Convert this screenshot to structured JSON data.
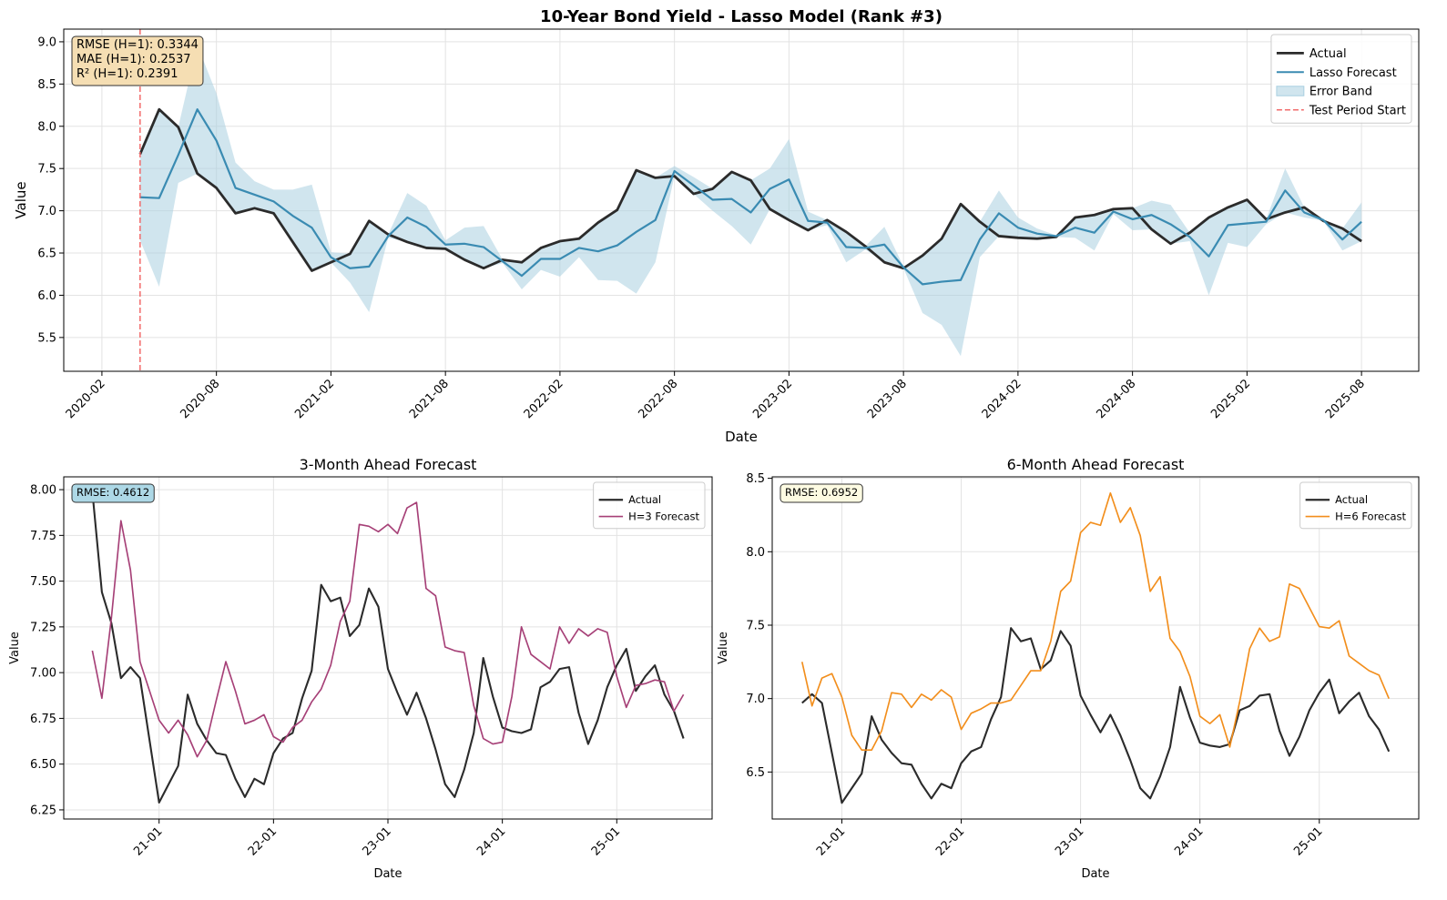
{
  "chart_data": [
    {
      "type": "line",
      "title": "10-Year Bond Yield - Lasso Model (Rank #3)",
      "x_label": "Date",
      "y_label": "Value",
      "x": [
        "2020-04",
        "2020-05",
        "2020-06",
        "2020-07",
        "2020-08",
        "2020-09",
        "2020-10",
        "2020-11",
        "2020-12",
        "2021-01",
        "2021-02",
        "2021-03",
        "2021-04",
        "2021-05",
        "2021-06",
        "2021-07",
        "2021-08",
        "2021-09",
        "2021-10",
        "2021-11",
        "2021-12",
        "2022-01",
        "2022-02",
        "2022-03",
        "2022-04",
        "2022-05",
        "2022-06",
        "2022-07",
        "2022-08",
        "2022-09",
        "2022-10",
        "2022-11",
        "2022-12",
        "2023-01",
        "2023-02",
        "2023-03",
        "2023-04",
        "2023-05",
        "2023-06",
        "2023-07",
        "2023-08",
        "2023-09",
        "2023-10",
        "2023-11",
        "2023-12",
        "2024-01",
        "2024-02",
        "2024-03",
        "2024-04",
        "2024-05",
        "2024-06",
        "2024-07",
        "2024-08",
        "2024-09",
        "2024-10",
        "2024-11",
        "2024-12",
        "2025-01",
        "2025-02",
        "2025-03",
        "2025-04",
        "2025-05",
        "2025-06",
        "2025-07",
        "2025-08"
      ],
      "series": [
        {
          "name": "Actual",
          "color": "#2b2b2b",
          "values": [
            7.67,
            8.2,
            7.99,
            7.44,
            7.27,
            6.97,
            7.03,
            6.97,
            6.63,
            6.29,
            6.39,
            6.49,
            6.88,
            6.72,
            6.63,
            6.56,
            6.55,
            6.42,
            6.32,
            6.42,
            6.39,
            6.56,
            6.64,
            6.67,
            6.86,
            7.01,
            7.48,
            7.39,
            7.41,
            7.2,
            7.26,
            7.46,
            7.36,
            7.02,
            6.89,
            6.77,
            6.89,
            6.75,
            6.58,
            6.39,
            6.32,
            6.47,
            6.67,
            7.08,
            6.87,
            6.7,
            6.68,
            6.67,
            6.69,
            6.92,
            6.95,
            7.02,
            7.03,
            6.78,
            6.61,
            6.74,
            6.92,
            7.04,
            7.13,
            6.9,
            6.98,
            7.04,
            6.88,
            6.79,
            6.64
          ]
        },
        {
          "name": "Lasso Forecast",
          "color": "#3a8bb2",
          "values": [
            7.16,
            7.15,
            7.66,
            8.2,
            7.83,
            7.27,
            7.19,
            7.11,
            6.94,
            6.8,
            6.45,
            6.32,
            6.34,
            6.7,
            6.92,
            6.81,
            6.6,
            6.61,
            6.57,
            6.4,
            6.23,
            6.43,
            6.43,
            6.56,
            6.52,
            6.59,
            6.75,
            6.89,
            7.47,
            7.3,
            7.13,
            7.14,
            6.98,
            7.26,
            7.37,
            6.88,
            6.86,
            6.57,
            6.56,
            6.6,
            6.33,
            6.13,
            6.16,
            6.18,
            6.66,
            6.97,
            6.8,
            6.73,
            6.7,
            6.8,
            6.74,
            6.99,
            6.9,
            6.95,
            6.84,
            6.69,
            6.46,
            6.83,
            6.85,
            6.87,
            7.24,
            6.98,
            6.89,
            6.66,
            6.87
          ],
          "errors": [
            0.51,
            1.05,
            0.33,
            0.76,
            0.56,
            0.3,
            0.16,
            0.14,
            0.31,
            0.51,
            0.06,
            0.17,
            0.54,
            0.02,
            0.29,
            0.25,
            0.05,
            0.19,
            0.25,
            0.02,
            0.16,
            0.13,
            0.21,
            0.11,
            0.34,
            0.42,
            0.73,
            0.5,
            0.06,
            0.1,
            0.13,
            0.32,
            0.38,
            0.24,
            0.48,
            0.11,
            0.03,
            0.18,
            0.02,
            0.21,
            0.01,
            0.34,
            0.51,
            0.9,
            0.21,
            0.27,
            0.12,
            0.06,
            0.01,
            0.12,
            0.21,
            0.03,
            0.13,
            0.17,
            0.23,
            0.05,
            0.46,
            0.21,
            0.28,
            0.03,
            0.26,
            0.06,
            0.01,
            0.13,
            0.23
          ]
        }
      ],
      "band": {
        "name": "Error Band",
        "color": "#a9cfe0"
      },
      "vline": {
        "name": "Test Period Start",
        "x": "2020-04",
        "color": "#f26b6b"
      },
      "annotation": [
        "RMSE (H=1): 0.3344",
        "MAE (H=1): 0.2537",
        "R² (H=1): 0.2391"
      ],
      "annotation_color": "#f5deb3",
      "xlim": [
        "2019-12",
        "2025-11"
      ],
      "xticks": [
        "2020-02",
        "2020-08",
        "2021-02",
        "2021-08",
        "2022-02",
        "2022-08",
        "2023-02",
        "2023-08",
        "2024-02",
        "2024-08",
        "2025-02",
        "2025-08"
      ],
      "ylim": [
        5.1,
        9.15
      ],
      "yticks": [
        5.5,
        6.0,
        6.5,
        7.0,
        7.5,
        8.0,
        8.5,
        9.0
      ],
      "ytick_labels": [
        "5.5",
        "6.0",
        "6.5",
        "7.0",
        "7.5",
        "8.0",
        "8.5",
        "9.0"
      ],
      "grid": true,
      "legend": "upper right"
    },
    {
      "type": "line",
      "title": "3-Month Ahead Forecast",
      "x_label": "Date",
      "y_label": "Value",
      "x": [
        "2020-06",
        "2020-07",
        "2020-08",
        "2020-09",
        "2020-10",
        "2020-11",
        "2020-12",
        "2021-01",
        "2021-02",
        "2021-03",
        "2021-04",
        "2021-05",
        "2021-06",
        "2021-07",
        "2021-08",
        "2021-09",
        "2021-10",
        "2021-11",
        "2021-12",
        "2022-01",
        "2022-02",
        "2022-03",
        "2022-04",
        "2022-05",
        "2022-06",
        "2022-07",
        "2022-08",
        "2022-09",
        "2022-10",
        "2022-11",
        "2022-12",
        "2023-01",
        "2023-02",
        "2023-03",
        "2023-04",
        "2023-05",
        "2023-06",
        "2023-07",
        "2023-08",
        "2023-09",
        "2023-10",
        "2023-11",
        "2023-12",
        "2024-01",
        "2024-02",
        "2024-03",
        "2024-04",
        "2024-05",
        "2024-06",
        "2024-07",
        "2024-08",
        "2024-09",
        "2024-10",
        "2024-11",
        "2024-12",
        "2025-01",
        "2025-02",
        "2025-03",
        "2025-04",
        "2025-05",
        "2025-06",
        "2025-07",
        "2025-08"
      ],
      "series": [
        {
          "name": "Actual",
          "color": "#2b2b2b",
          "values": [
            7.99,
            7.44,
            7.27,
            6.97,
            7.03,
            6.97,
            6.63,
            6.29,
            6.39,
            6.49,
            6.88,
            6.72,
            6.63,
            6.56,
            6.55,
            6.42,
            6.32,
            6.42,
            6.39,
            6.56,
            6.64,
            6.67,
            6.86,
            7.01,
            7.48,
            7.39,
            7.41,
            7.2,
            7.26,
            7.46,
            7.36,
            7.02,
            6.89,
            6.77,
            6.89,
            6.75,
            6.58,
            6.39,
            6.32,
            6.47,
            6.67,
            7.08,
            6.87,
            6.7,
            6.68,
            6.67,
            6.69,
            6.92,
            6.95,
            7.02,
            7.03,
            6.78,
            6.61,
            6.74,
            6.92,
            7.04,
            7.13,
            6.9,
            6.98,
            7.04,
            6.88,
            6.79,
            6.64
          ]
        },
        {
          "name": "H=3 Forecast",
          "color": "#a64077",
          "values": [
            7.12,
            6.86,
            7.3,
            7.83,
            7.56,
            7.06,
            6.9,
            6.74,
            6.67,
            6.74,
            6.66,
            6.54,
            6.63,
            6.85,
            7.06,
            6.9,
            6.72,
            6.74,
            6.77,
            6.65,
            6.62,
            6.7,
            6.74,
            6.84,
            6.91,
            7.04,
            7.28,
            7.39,
            7.81,
            7.8,
            7.77,
            7.81,
            7.76,
            7.9,
            7.93,
            7.46,
            7.42,
            7.14,
            7.12,
            7.11,
            6.82,
            6.64,
            6.61,
            6.62,
            6.87,
            7.25,
            7.1,
            7.06,
            7.02,
            7.25,
            7.16,
            7.24,
            7.2,
            7.24,
            7.22,
            6.98,
            6.81,
            6.93,
            6.94,
            6.96,
            6.95,
            6.79,
            6.88
          ]
        }
      ],
      "annotation": [
        "RMSE: 0.4612"
      ],
      "annotation_color": "#add8e6",
      "xlim": [
        "2020-03",
        "2025-11"
      ],
      "xticks": [
        {
          "value": "2021-01",
          "label": "21-01"
        },
        {
          "value": "2022-01",
          "label": "22-01"
        },
        {
          "value": "2023-01",
          "label": "23-01"
        },
        {
          "value": "2024-01",
          "label": "24-01"
        },
        {
          "value": "2025-01",
          "label": "25-01"
        }
      ],
      "ylim": [
        6.2,
        8.07
      ],
      "yticks": [
        6.25,
        6.5,
        6.75,
        7.0,
        7.25,
        7.5,
        7.75,
        8.0
      ],
      "ytick_labels": [
        "6.25",
        "6.50",
        "6.75",
        "7.00",
        "7.25",
        "7.50",
        "7.75",
        "8.00"
      ],
      "grid": true,
      "legend": "upper right"
    },
    {
      "type": "line",
      "title": "6-Month Ahead Forecast",
      "x_label": "Date",
      "y_label": "Value",
      "x": [
        "2020-09",
        "2020-10",
        "2020-11",
        "2020-12",
        "2021-01",
        "2021-02",
        "2021-03",
        "2021-04",
        "2021-05",
        "2021-06",
        "2021-07",
        "2021-08",
        "2021-09",
        "2021-10",
        "2021-11",
        "2021-12",
        "2022-01",
        "2022-02",
        "2022-03",
        "2022-04",
        "2022-05",
        "2022-06",
        "2022-07",
        "2022-08",
        "2022-09",
        "2022-10",
        "2022-11",
        "2022-12",
        "2023-01",
        "2023-02",
        "2023-03",
        "2023-04",
        "2023-05",
        "2023-06",
        "2023-07",
        "2023-08",
        "2023-09",
        "2023-10",
        "2023-11",
        "2023-12",
        "2024-01",
        "2024-02",
        "2024-03",
        "2024-04",
        "2024-05",
        "2024-06",
        "2024-07",
        "2024-08",
        "2024-09",
        "2024-10",
        "2024-11",
        "2024-12",
        "2025-01",
        "2025-02",
        "2025-03",
        "2025-04",
        "2025-05",
        "2025-06",
        "2025-07",
        "2025-08"
      ],
      "series": [
        {
          "name": "Actual",
          "color": "#2b2b2b",
          "values": [
            6.97,
            7.03,
            6.97,
            6.63,
            6.29,
            6.39,
            6.49,
            6.88,
            6.72,
            6.63,
            6.56,
            6.55,
            6.42,
            6.32,
            6.42,
            6.39,
            6.56,
            6.64,
            6.67,
            6.86,
            7.01,
            7.48,
            7.39,
            7.41,
            7.2,
            7.26,
            7.46,
            7.36,
            7.02,
            6.89,
            6.77,
            6.89,
            6.75,
            6.58,
            6.39,
            6.32,
            6.47,
            6.67,
            7.08,
            6.87,
            6.7,
            6.68,
            6.67,
            6.69,
            6.92,
            6.95,
            7.02,
            7.03,
            6.78,
            6.61,
            6.74,
            6.92,
            7.04,
            7.13,
            6.9,
            6.98,
            7.04,
            6.88,
            6.79,
            6.64
          ]
        },
        {
          "name": "H=6 Forecast",
          "color": "#f28e1c",
          "values": [
            7.25,
            6.95,
            7.14,
            7.17,
            7.01,
            6.75,
            6.65,
            6.65,
            6.78,
            7.04,
            7.03,
            6.94,
            7.03,
            6.99,
            7.06,
            7.01,
            6.79,
            6.9,
            6.93,
            6.97,
            6.97,
            6.99,
            7.09,
            7.19,
            7.19,
            7.39,
            7.73,
            7.8,
            8.13,
            8.2,
            8.18,
            8.4,
            8.2,
            8.3,
            8.11,
            7.73,
            7.83,
            7.41,
            7.32,
            7.15,
            6.88,
            6.83,
            6.89,
            6.67,
            6.98,
            7.34,
            7.48,
            7.39,
            7.42,
            7.78,
            7.75,
            7.62,
            7.49,
            7.48,
            7.53,
            7.29,
            7.24,
            7.19,
            7.16,
            7.0
          ]
        }
      ],
      "annotation": [
        "RMSE: 0.6952"
      ],
      "annotation_color": "#fdfbe2",
      "xlim": [
        "2020-06",
        "2025-11"
      ],
      "xticks": [
        {
          "value": "2021-01",
          "label": "21-01"
        },
        {
          "value": "2022-01",
          "label": "22-01"
        },
        {
          "value": "2023-01",
          "label": "23-01"
        },
        {
          "value": "2024-01",
          "label": "24-01"
        },
        {
          "value": "2025-01",
          "label": "25-01"
        }
      ],
      "ylim": [
        6.18,
        8.51
      ],
      "yticks": [
        6.5,
        7.0,
        7.5,
        8.0,
        8.5
      ],
      "ytick_labels": [
        "6.5",
        "7.0",
        "7.5",
        "8.0",
        "8.5"
      ],
      "grid": true,
      "legend": "upper right"
    }
  ]
}
